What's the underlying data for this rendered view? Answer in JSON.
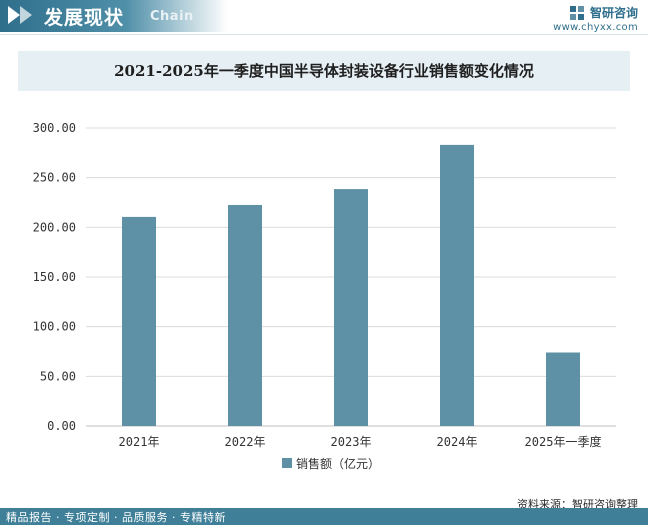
{
  "header": {
    "title": "发展现状",
    "subtitle": "Chain",
    "brand_name": "智研咨询",
    "brand_url": "www.chyxx.com"
  },
  "title": "2021-2025年一季度中国半导体封装设备行业销售额变化情况",
  "chart_data": {
    "type": "bar",
    "categories": [
      "2021年",
      "2022年",
      "2023年",
      "2024年",
      "2025年一季度"
    ],
    "series": [
      {
        "name": "销售额（亿元）",
        "values": [
          210.5,
          222.5,
          238.5,
          283.0,
          74.0
        ]
      }
    ],
    "ylim": [
      0,
      300
    ],
    "yticks": [
      "0.00",
      "50.00",
      "100.00",
      "150.00",
      "200.00",
      "250.00",
      "300.00"
    ],
    "grid": true,
    "legend": "bottom",
    "bar_color": "#5e91a6"
  },
  "source": "资料来源：智研咨询整理",
  "footer": "精品报告 · 专项定制 · 品质服务 · 专精特新"
}
